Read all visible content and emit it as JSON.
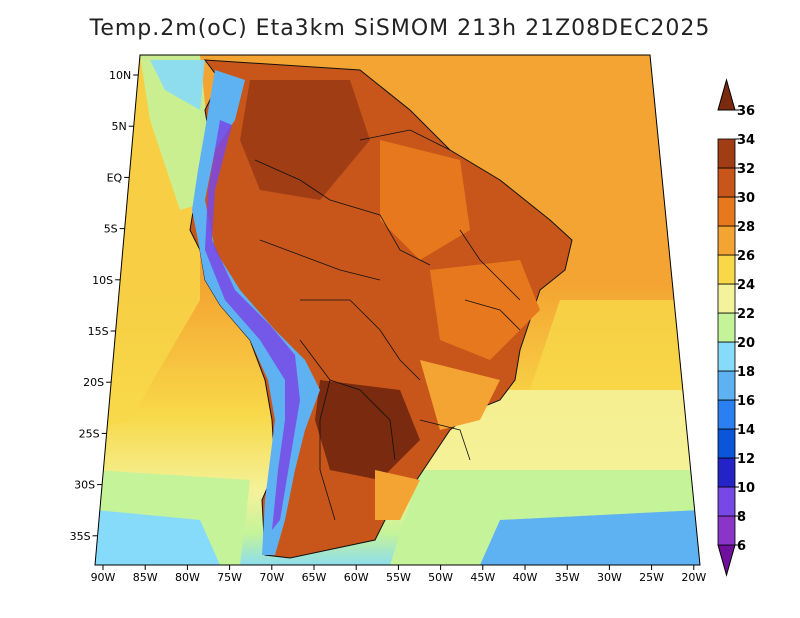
{
  "title": "Temp.2m(oC) Eta3km SiSMOM 213h 21Z08DEC2025",
  "map": {
    "lon_labels": [
      "90W",
      "85W",
      "80W",
      "75W",
      "70W",
      "65W",
      "60W",
      "55W",
      "50W",
      "45W",
      "40W",
      "35W",
      "30W",
      "25W",
      "20W"
    ],
    "lat_labels": [
      "10N",
      "5N",
      "EQ",
      "5S",
      "10S",
      "15S",
      "20S",
      "25S",
      "30S",
      "35S"
    ]
  },
  "colorbar": {
    "labels": [
      "6",
      "8",
      "10",
      "12",
      "14",
      "16",
      "18",
      "20",
      "22",
      "24",
      "26",
      "28",
      "30",
      "32",
      "34",
      "36"
    ],
    "colors": [
      "#6e0f9e",
      "#8a35c8",
      "#7848e6",
      "#2323c8",
      "#0a55d8",
      "#2a80f0",
      "#5fb2f2",
      "#86dafa",
      "#c4f39a",
      "#f4f29a",
      "#f8d848",
      "#f4a432",
      "#e8781e",
      "#c8561a",
      "#a03d14",
      "#7a2a0f"
    ]
  },
  "palette": {
    "ocean_warm": "#f4a432",
    "ocean_mild": "#f8d848",
    "ocean_cool": "#f4f29a",
    "land_hot": "#c8561a",
    "land_very_hot": "#a03d14",
    "andes_cold": "#5fb2f2",
    "border": "#111111"
  }
}
